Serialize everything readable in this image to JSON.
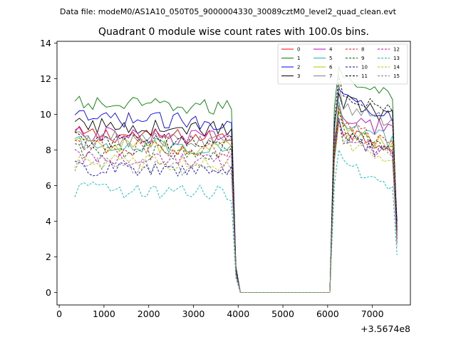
{
  "suptitle": "Data file: modeM0/AS1A10_050T05_9000004330_30089cztM0_level2_quad_clean.evt",
  "chart_data": {
    "type": "line",
    "title": "Quadrant 0 module wise count rates with 100.0s bins.",
    "offset_label": "+3.5674e8",
    "xlim": [
      -50,
      7850
    ],
    "ylim": [
      -0.7,
      14.1
    ],
    "xticks": [
      0,
      1000,
      2000,
      3000,
      4000,
      5000,
      6000,
      7000
    ],
    "xtick_labels": [
      "0",
      "1000",
      "2000",
      "3000",
      "4000",
      "5000",
      "6000",
      "7000"
    ],
    "yticks": [
      0,
      2,
      4,
      6,
      8,
      10,
      12,
      14
    ],
    "ytick_labels": [
      "0",
      "2",
      "4",
      "6",
      "8",
      "10",
      "12",
      "14"
    ],
    "legend_position": "top-right",
    "segments": {
      "seg1_x": [
        350,
        3850
      ],
      "drop_x": [
        3950,
        4050
      ],
      "zero_x": [
        4050,
        6050
      ],
      "rise_x": [
        6150,
        6250
      ],
      "seg2_x": [
        6250,
        7450
      ],
      "tail_x": [
        7550
      ]
    },
    "series": [
      {
        "name": "0",
        "color": "#ff0000",
        "dash": "solid",
        "level1": 8.9,
        "level2": 9.2,
        "tail": 3.3
      },
      {
        "name": "1",
        "color": "#008000",
        "dash": "solid",
        "level1": 10.6,
        "level2": 12.2,
        "tail": 3.0
      },
      {
        "name": "2",
        "color": "#0000ff",
        "dash": "solid",
        "level1": 9.8,
        "level2": 11.0,
        "tail": 4.0
      },
      {
        "name": "3",
        "color": "#000000",
        "dash": "solid",
        "level1": 9.4,
        "level2": 10.8,
        "tail": 3.6
      },
      {
        "name": "4",
        "color": "#bf00bf",
        "dash": "solid",
        "level1": 8.9,
        "level2": 10.0,
        "tail": 3.4
      },
      {
        "name": "5",
        "color": "#20b2aa",
        "dash": "solid",
        "level1": 8.4,
        "level2": 9.5,
        "tail": 3.1
      },
      {
        "name": "6",
        "color": "#bfbf00",
        "dash": "solid",
        "level1": 8.3,
        "level2": 9.2,
        "tail": 3.0
      },
      {
        "name": "7",
        "color": "#808080",
        "dash": "solid",
        "level1": 8.7,
        "level2": 10.6,
        "tail": 3.3
      },
      {
        "name": "8",
        "color": "#ff0000",
        "dash": "dashed",
        "level1": 8.2,
        "level2": 9.4,
        "tail": 3.2
      },
      {
        "name": "9",
        "color": "#006400",
        "dash": "dashed",
        "level1": 8.0,
        "level2": 9.1,
        "tail": 3.0
      },
      {
        "name": "10",
        "color": "#0000cd",
        "dash": "dashed",
        "level1": 7.0,
        "level2": 8.8,
        "tail": 2.9
      },
      {
        "name": "11",
        "color": "#000000",
        "dash": "dashed",
        "level1": 8.6,
        "level2": 11.2,
        "tail": 3.5
      },
      {
        "name": "12",
        "color": "#bf00bf",
        "dash": "dashed",
        "level1": 7.6,
        "level2": 8.7,
        "tail": 2.8
      },
      {
        "name": "13",
        "color": "#00bfbf",
        "dash": "dashed",
        "level1": 5.8,
        "level2": 7.1,
        "tail": 2.1
      },
      {
        "name": "14",
        "color": "#bfbf00",
        "dash": "dashed",
        "level1": 7.4,
        "level2": 8.6,
        "tail": 2.7
      },
      {
        "name": "15",
        "color": "#808080",
        "dash": "dashed",
        "level1": 7.2,
        "level2": 8.9,
        "tail": 2.6
      }
    ]
  }
}
